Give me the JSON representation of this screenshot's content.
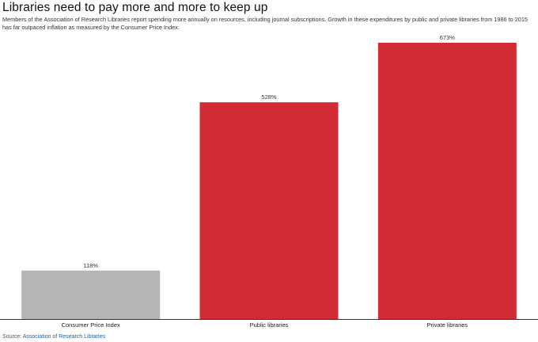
{
  "title": "Libraries need to pay more and more to keep up",
  "subtitle": "Members of the Association of Research Libraries report spending more annually on resources, including journal subscriptions. Growth in these expenditures by public and private libraries from 1986 to 2015 has far outpaced inflation as measured by the Consumer Price Index.",
  "source": {
    "prefix": "Source: ",
    "link_text": "Association of Research Libraries"
  },
  "chart_data": {
    "type": "bar",
    "categories": [
      "Consumer Price Index",
      "Public libraries",
      "Private libraries"
    ],
    "values": [
      118,
      528,
      673
    ],
    "data_labels": [
      "118%",
      "528%",
      "673%"
    ],
    "bar_colors": [
      "#b5b5b5",
      "#d22b33",
      "#d22b33"
    ],
    "ylim": [
      0,
      673
    ],
    "grid": false,
    "legend": "none",
    "xlabel": "",
    "ylabel": ""
  }
}
